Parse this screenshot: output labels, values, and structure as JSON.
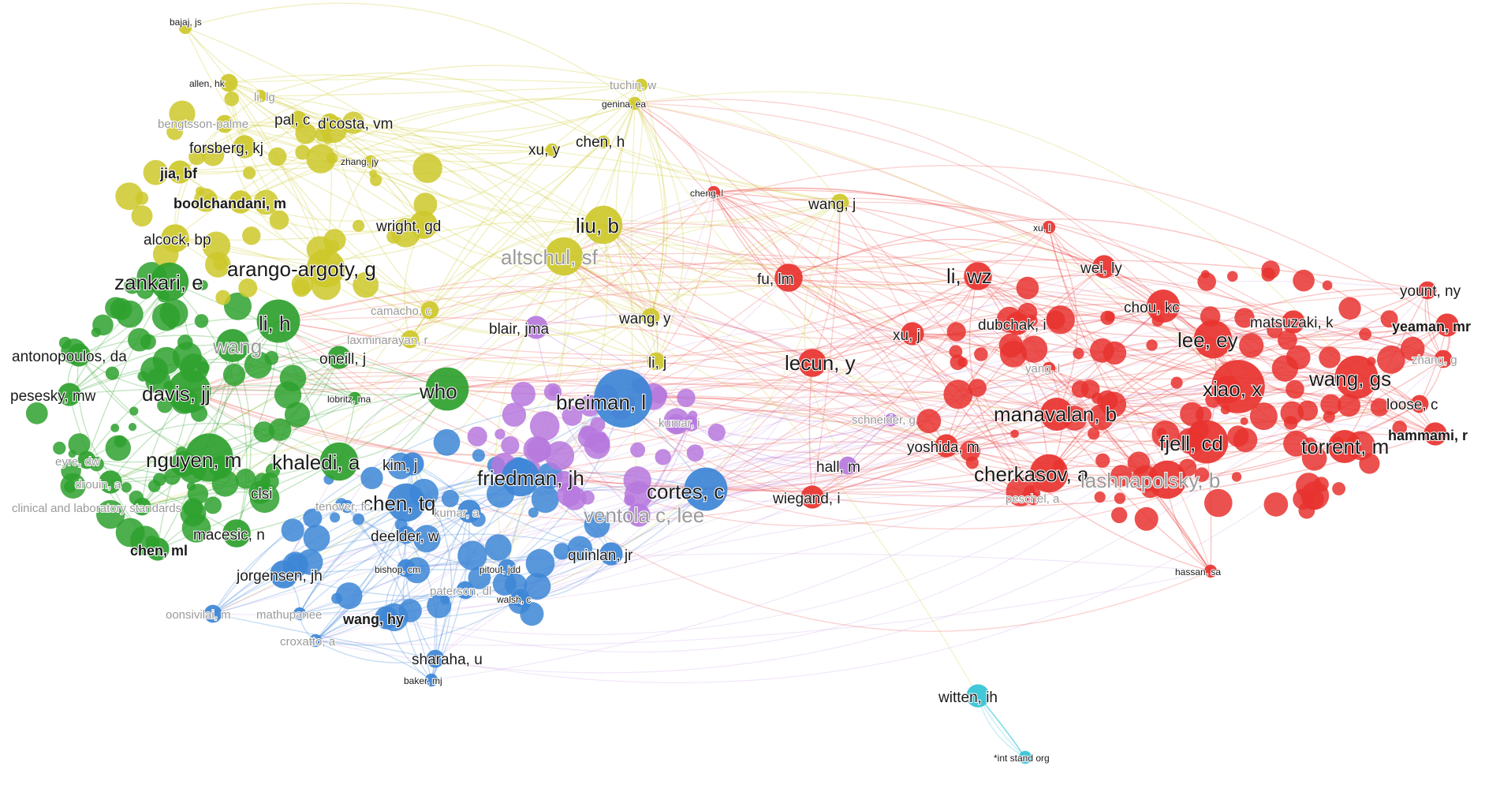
{
  "colors": {
    "red": "#e8332f",
    "green": "#2ea12e",
    "blue": "#3d86d6",
    "yellow": "#cdc82a",
    "purple": "#b678dd",
    "cyan": "#31c3d6",
    "label_strong": "#1a1a1a",
    "label_faint": "#9a9a9a"
  },
  "clusters": [
    {
      "id": "red",
      "name": ""
    },
    {
      "id": "green",
      "name": ""
    },
    {
      "id": "blue",
      "name": ""
    },
    {
      "id": "yellow",
      "name": ""
    },
    {
      "id": "purple",
      "name": ""
    },
    {
      "id": "cyan",
      "name": ""
    }
  ],
  "nodes": [
    {
      "id": "bajaj",
      "label": "bajaj, js",
      "cluster": "yellow",
      "weight": 1,
      "style": "small"
    },
    {
      "id": "allen",
      "label": "allen, hk",
      "cluster": "yellow",
      "weight": 2,
      "style": "small"
    },
    {
      "id": "lilg",
      "label": "li, lg",
      "cluster": "yellow",
      "weight": 1,
      "style": "faint"
    },
    {
      "id": "bengtsson",
      "label": "bengtsson-palme",
      "cluster": "yellow",
      "weight": 2,
      "style": "faint"
    },
    {
      "id": "pal",
      "label": "pal, c",
      "cluster": "yellow",
      "weight": 2,
      "style": "normal"
    },
    {
      "id": "dcosta",
      "label": "d'costa, vm",
      "cluster": "yellow",
      "weight": 2,
      "style": "normal"
    },
    {
      "id": "forsberg",
      "label": "forsberg, kj",
      "cluster": "yellow",
      "weight": 3,
      "style": "normal"
    },
    {
      "id": "zhangjy",
      "label": "zhang, jy",
      "cluster": "yellow",
      "weight": 1,
      "style": "small"
    },
    {
      "id": "jiabf",
      "label": "jia, bf",
      "cluster": "yellow",
      "weight": 3,
      "style": "bold"
    },
    {
      "id": "boolch",
      "label": "boolchandani, m",
      "cluster": "yellow",
      "weight": 3,
      "style": "bold"
    },
    {
      "id": "wrightgd",
      "label": "wright, gd",
      "cluster": "yellow",
      "weight": 4,
      "style": "normal"
    },
    {
      "id": "alcock",
      "label": "alcock, bp",
      "cluster": "yellow",
      "weight": 4,
      "style": "normal"
    },
    {
      "id": "arango",
      "label": "arango-argoty, g",
      "cluster": "yellow",
      "weight": 6,
      "style": "large"
    },
    {
      "id": "camacho",
      "label": "camacho, c",
      "cluster": "yellow",
      "weight": 2,
      "style": "faint"
    },
    {
      "id": "tuchin",
      "label": "tuchin, w",
      "cluster": "yellow",
      "weight": 1,
      "style": "faint"
    },
    {
      "id": "genina",
      "label": "genina, ea",
      "cluster": "yellow",
      "weight": 1,
      "style": "small"
    },
    {
      "id": "xuy",
      "label": "xu, y",
      "cluster": "yellow",
      "weight": 1,
      "style": "normal"
    },
    {
      "id": "chenh",
      "label": "chen, h",
      "cluster": "yellow",
      "weight": 1,
      "style": "normal"
    },
    {
      "id": "liub",
      "label": "liu, b",
      "cluster": "yellow",
      "weight": 6,
      "style": "large"
    },
    {
      "id": "altschul",
      "label": "altschul, sf",
      "cluster": "yellow",
      "weight": 6,
      "style": "largefaint"
    },
    {
      "id": "wangj",
      "label": "wang, j",
      "cluster": "yellow",
      "weight": 2,
      "style": "normal"
    },
    {
      "id": "wangy",
      "label": "wang, y",
      "cluster": "yellow",
      "weight": 2,
      "style": "normal"
    },
    {
      "id": "lij",
      "label": "li, j",
      "cluster": "yellow",
      "weight": 2,
      "style": "normal"
    },
    {
      "id": "laxmi",
      "label": "laxminarayan, r",
      "cluster": "yellow",
      "weight": 2,
      "style": "faint"
    },
    {
      "id": "zankari",
      "label": "zankari, e",
      "cluster": "green",
      "weight": 6,
      "style": "large"
    },
    {
      "id": "lih",
      "label": "li, h",
      "cluster": "green",
      "weight": 7,
      "style": "large"
    },
    {
      "id": "antono",
      "label": "antonopoulos, da",
      "cluster": "green",
      "weight": 3,
      "style": "normal"
    },
    {
      "id": "pesesky",
      "label": "pesesky, mw",
      "cluster": "green",
      "weight": 3,
      "style": "normal"
    },
    {
      "id": "davisjj",
      "label": "davis, jj",
      "cluster": "green",
      "weight": 7,
      "style": "large"
    },
    {
      "id": "who",
      "label": "who",
      "cluster": "green",
      "weight": 7,
      "style": "large"
    },
    {
      "id": "nguyen",
      "label": "nguyen, m",
      "cluster": "green",
      "weight": 8,
      "style": "large"
    },
    {
      "id": "khaledi",
      "label": "khaledi, a",
      "cluster": "green",
      "weight": 6,
      "style": "large"
    },
    {
      "id": "eyre",
      "label": "eyre, dw",
      "cluster": "green",
      "weight": 2,
      "style": "faint"
    },
    {
      "id": "drouin",
      "label": "drouin, a",
      "cluster": "green",
      "weight": 3,
      "style": "faint"
    },
    {
      "id": "clsi",
      "label": "clsi",
      "cluster": "green",
      "weight": 3,
      "style": "normal"
    },
    {
      "id": "clinlab",
      "label": "clinical and laboratory standards",
      "cluster": "green",
      "weight": 2,
      "style": "faint"
    },
    {
      "id": "macesic",
      "label": "macesic, n",
      "cluster": "green",
      "weight": 4,
      "style": "normal"
    },
    {
      "id": "chenml",
      "label": "chen, ml",
      "cluster": "green",
      "weight": 3,
      "style": "bold"
    },
    {
      "id": "oneill",
      "label": "oneill, j",
      "cluster": "green",
      "weight": 3,
      "style": "normal"
    },
    {
      "id": "lobritz",
      "label": "lobritz, ma",
      "cluster": "green",
      "weight": 1,
      "style": "small"
    },
    {
      "id": "wang_g",
      "label": "wang",
      "cluster": "green",
      "weight": 5,
      "style": "largefaint"
    },
    {
      "id": "breiman",
      "label": "breiman, l",
      "cluster": "blue",
      "weight": 10,
      "style": "large"
    },
    {
      "id": "friedman",
      "label": "friedman, jh",
      "cluster": "blue",
      "weight": 6,
      "style": "large"
    },
    {
      "id": "cortes",
      "label": "cortes, c",
      "cluster": "blue",
      "weight": 7,
      "style": "large"
    },
    {
      "id": "chentq",
      "label": "chen, tq",
      "cluster": "blue",
      "weight": 6,
      "style": "large"
    },
    {
      "id": "kimj",
      "label": "kim, j",
      "cluster": "blue",
      "weight": 3,
      "style": "normal"
    },
    {
      "id": "kumar_a",
      "label": "kumar, a",
      "cluster": "blue",
      "weight": 3,
      "style": "faint"
    },
    {
      "id": "deelder",
      "label": "deelder, w",
      "cluster": "blue",
      "weight": 2,
      "style": "normal"
    },
    {
      "id": "jorgensen",
      "label": "jorgensen, jh",
      "cluster": "blue",
      "weight": 4,
      "style": "normal"
    },
    {
      "id": "bishop",
      "label": "bishop, cm",
      "cluster": "blue",
      "weight": 2,
      "style": "small"
    },
    {
      "id": "pitout",
      "label": "pitout, jdd",
      "cluster": "blue",
      "weight": 2,
      "style": "small"
    },
    {
      "id": "paterson",
      "label": "paterson, dl",
      "cluster": "blue",
      "weight": 2,
      "style": "faint"
    },
    {
      "id": "walsh",
      "label": "walsh, c",
      "cluster": "blue",
      "weight": 2,
      "style": "small"
    },
    {
      "id": "quinlan",
      "label": "quinlan, jr",
      "cluster": "blue",
      "weight": 3,
      "style": "normal"
    },
    {
      "id": "oonsivilai",
      "label": "oonsivilai, m",
      "cluster": "blue",
      "weight": 2,
      "style": "faint"
    },
    {
      "id": "mathupanee",
      "label": "mathupanee",
      "cluster": "blue",
      "weight": 1,
      "style": "faint"
    },
    {
      "id": "wanghy",
      "label": "wang, hy",
      "cluster": "blue",
      "weight": 3,
      "style": "bold"
    },
    {
      "id": "croxatto",
      "label": "croxatto, a",
      "cluster": "blue",
      "weight": 1,
      "style": "faint"
    },
    {
      "id": "sharaha",
      "label": "sharaha, u",
      "cluster": "blue",
      "weight": 2,
      "style": "normal"
    },
    {
      "id": "bakermj",
      "label": "baker, mj",
      "cluster": "blue",
      "weight": 1,
      "style": "small"
    },
    {
      "id": "tenover",
      "label": "tenover, fc",
      "cluster": "blue",
      "weight": 1,
      "style": "faint"
    },
    {
      "id": "blair",
      "label": "blair, jma",
      "cluster": "purple",
      "weight": 3,
      "style": "normal"
    },
    {
      "id": "kumar_i",
      "label": "kumar, i",
      "cluster": "purple",
      "weight": 1,
      "style": "faint"
    },
    {
      "id": "ventola",
      "label": "ventola c, lee",
      "cluster": "purple",
      "weight": 3,
      "style": "largefaint"
    },
    {
      "id": "hallm",
      "label": "hall, m",
      "cluster": "purple",
      "weight": 2,
      "style": "normal"
    },
    {
      "id": "schneider",
      "label": "schneider, g",
      "cluster": "purple",
      "weight": 1,
      "style": "faint"
    },
    {
      "id": "yoshida",
      "label": "yoshida, m",
      "cluster": "red",
      "weight": 3,
      "style": "normal"
    },
    {
      "id": "fulm",
      "label": "fu, lm",
      "cluster": "red",
      "weight": 4,
      "style": "normal"
    },
    {
      "id": "liwz",
      "label": "li, wz",
      "cluster": "red",
      "weight": 4,
      "style": "large"
    },
    {
      "id": "weily",
      "label": "wei, ly",
      "cluster": "red",
      "weight": 3,
      "style": "normal"
    },
    {
      "id": "xul",
      "label": "xu, l",
      "cluster": "red",
      "weight": 1,
      "style": "small"
    },
    {
      "id": "chengl",
      "label": "cheng, l",
      "cluster": "red",
      "weight": 1,
      "style": "small"
    },
    {
      "id": "chou",
      "label": "chou, kc",
      "cluster": "red",
      "weight": 5,
      "style": "normal"
    },
    {
      "id": "dubchak",
      "label": "dubchak, i",
      "cluster": "red",
      "weight": 3,
      "style": "normal"
    },
    {
      "id": "xuj",
      "label": "xu, j",
      "cluster": "red",
      "weight": 3,
      "style": "normal"
    },
    {
      "id": "leeey",
      "label": "lee, ey",
      "cluster": "red",
      "weight": 6,
      "style": "large"
    },
    {
      "id": "lecun",
      "label": "lecun, y",
      "cluster": "red",
      "weight": 4,
      "style": "large"
    },
    {
      "id": "yangl",
      "label": "yang, l",
      "cluster": "red",
      "weight": 1,
      "style": "faint"
    },
    {
      "id": "matsuzaki",
      "label": "matsuzaki, k",
      "cluster": "red",
      "weight": 3,
      "style": "normal"
    },
    {
      "id": "yount",
      "label": "yount, ny",
      "cluster": "red",
      "weight": 2,
      "style": "normal"
    },
    {
      "id": "yeaman",
      "label": "yeaman, mr",
      "cluster": "red",
      "weight": 3,
      "style": "bold"
    },
    {
      "id": "xiaox",
      "label": "xiao, x",
      "cluster": "red",
      "weight": 9,
      "style": "large"
    },
    {
      "id": "wanggs",
      "label": "wang, gs",
      "cluster": "red",
      "weight": 7,
      "style": "large"
    },
    {
      "id": "zhaog",
      "label": "zhang, g",
      "cluster": "red",
      "weight": 2,
      "style": "faint"
    },
    {
      "id": "loose",
      "label": "loose, c",
      "cluster": "red",
      "weight": 2,
      "style": "normal"
    },
    {
      "id": "manavalan",
      "label": "manavalan, b",
      "cluster": "red",
      "weight": 5,
      "style": "large"
    },
    {
      "id": "fjell",
      "label": "fjell, cd",
      "cluster": "red",
      "weight": 7,
      "style": "large"
    },
    {
      "id": "hammami",
      "label": "hammami, r",
      "cluster": "red",
      "weight": 3,
      "style": "bold"
    },
    {
      "id": "torrent",
      "label": "torrent, m",
      "cluster": "red",
      "weight": 5,
      "style": "large"
    },
    {
      "id": "cherkasov",
      "label": "cherkasov, a",
      "cluster": "red",
      "weight": 6,
      "style": "large"
    },
    {
      "id": "lashnapolsky",
      "label": "lashnapolsky, b",
      "cluster": "red",
      "weight": 6,
      "style": "largefaint"
    },
    {
      "id": "peschel",
      "label": "peschel, a",
      "cluster": "red",
      "weight": 1,
      "style": "faint"
    },
    {
      "id": "wiegand",
      "label": "wiegand, i",
      "cluster": "red",
      "weight": 3,
      "style": "normal"
    },
    {
      "id": "hassan",
      "label": "hassan, sa",
      "cluster": "red",
      "weight": 1,
      "style": "small"
    },
    {
      "id": "witten",
      "label": "witten, ih",
      "cluster": "cyan",
      "weight": 3,
      "style": "normal"
    },
    {
      "id": "intstand",
      "label": "*int stand org",
      "cluster": "cyan",
      "weight": 1,
      "style": "small"
    }
  ]
}
